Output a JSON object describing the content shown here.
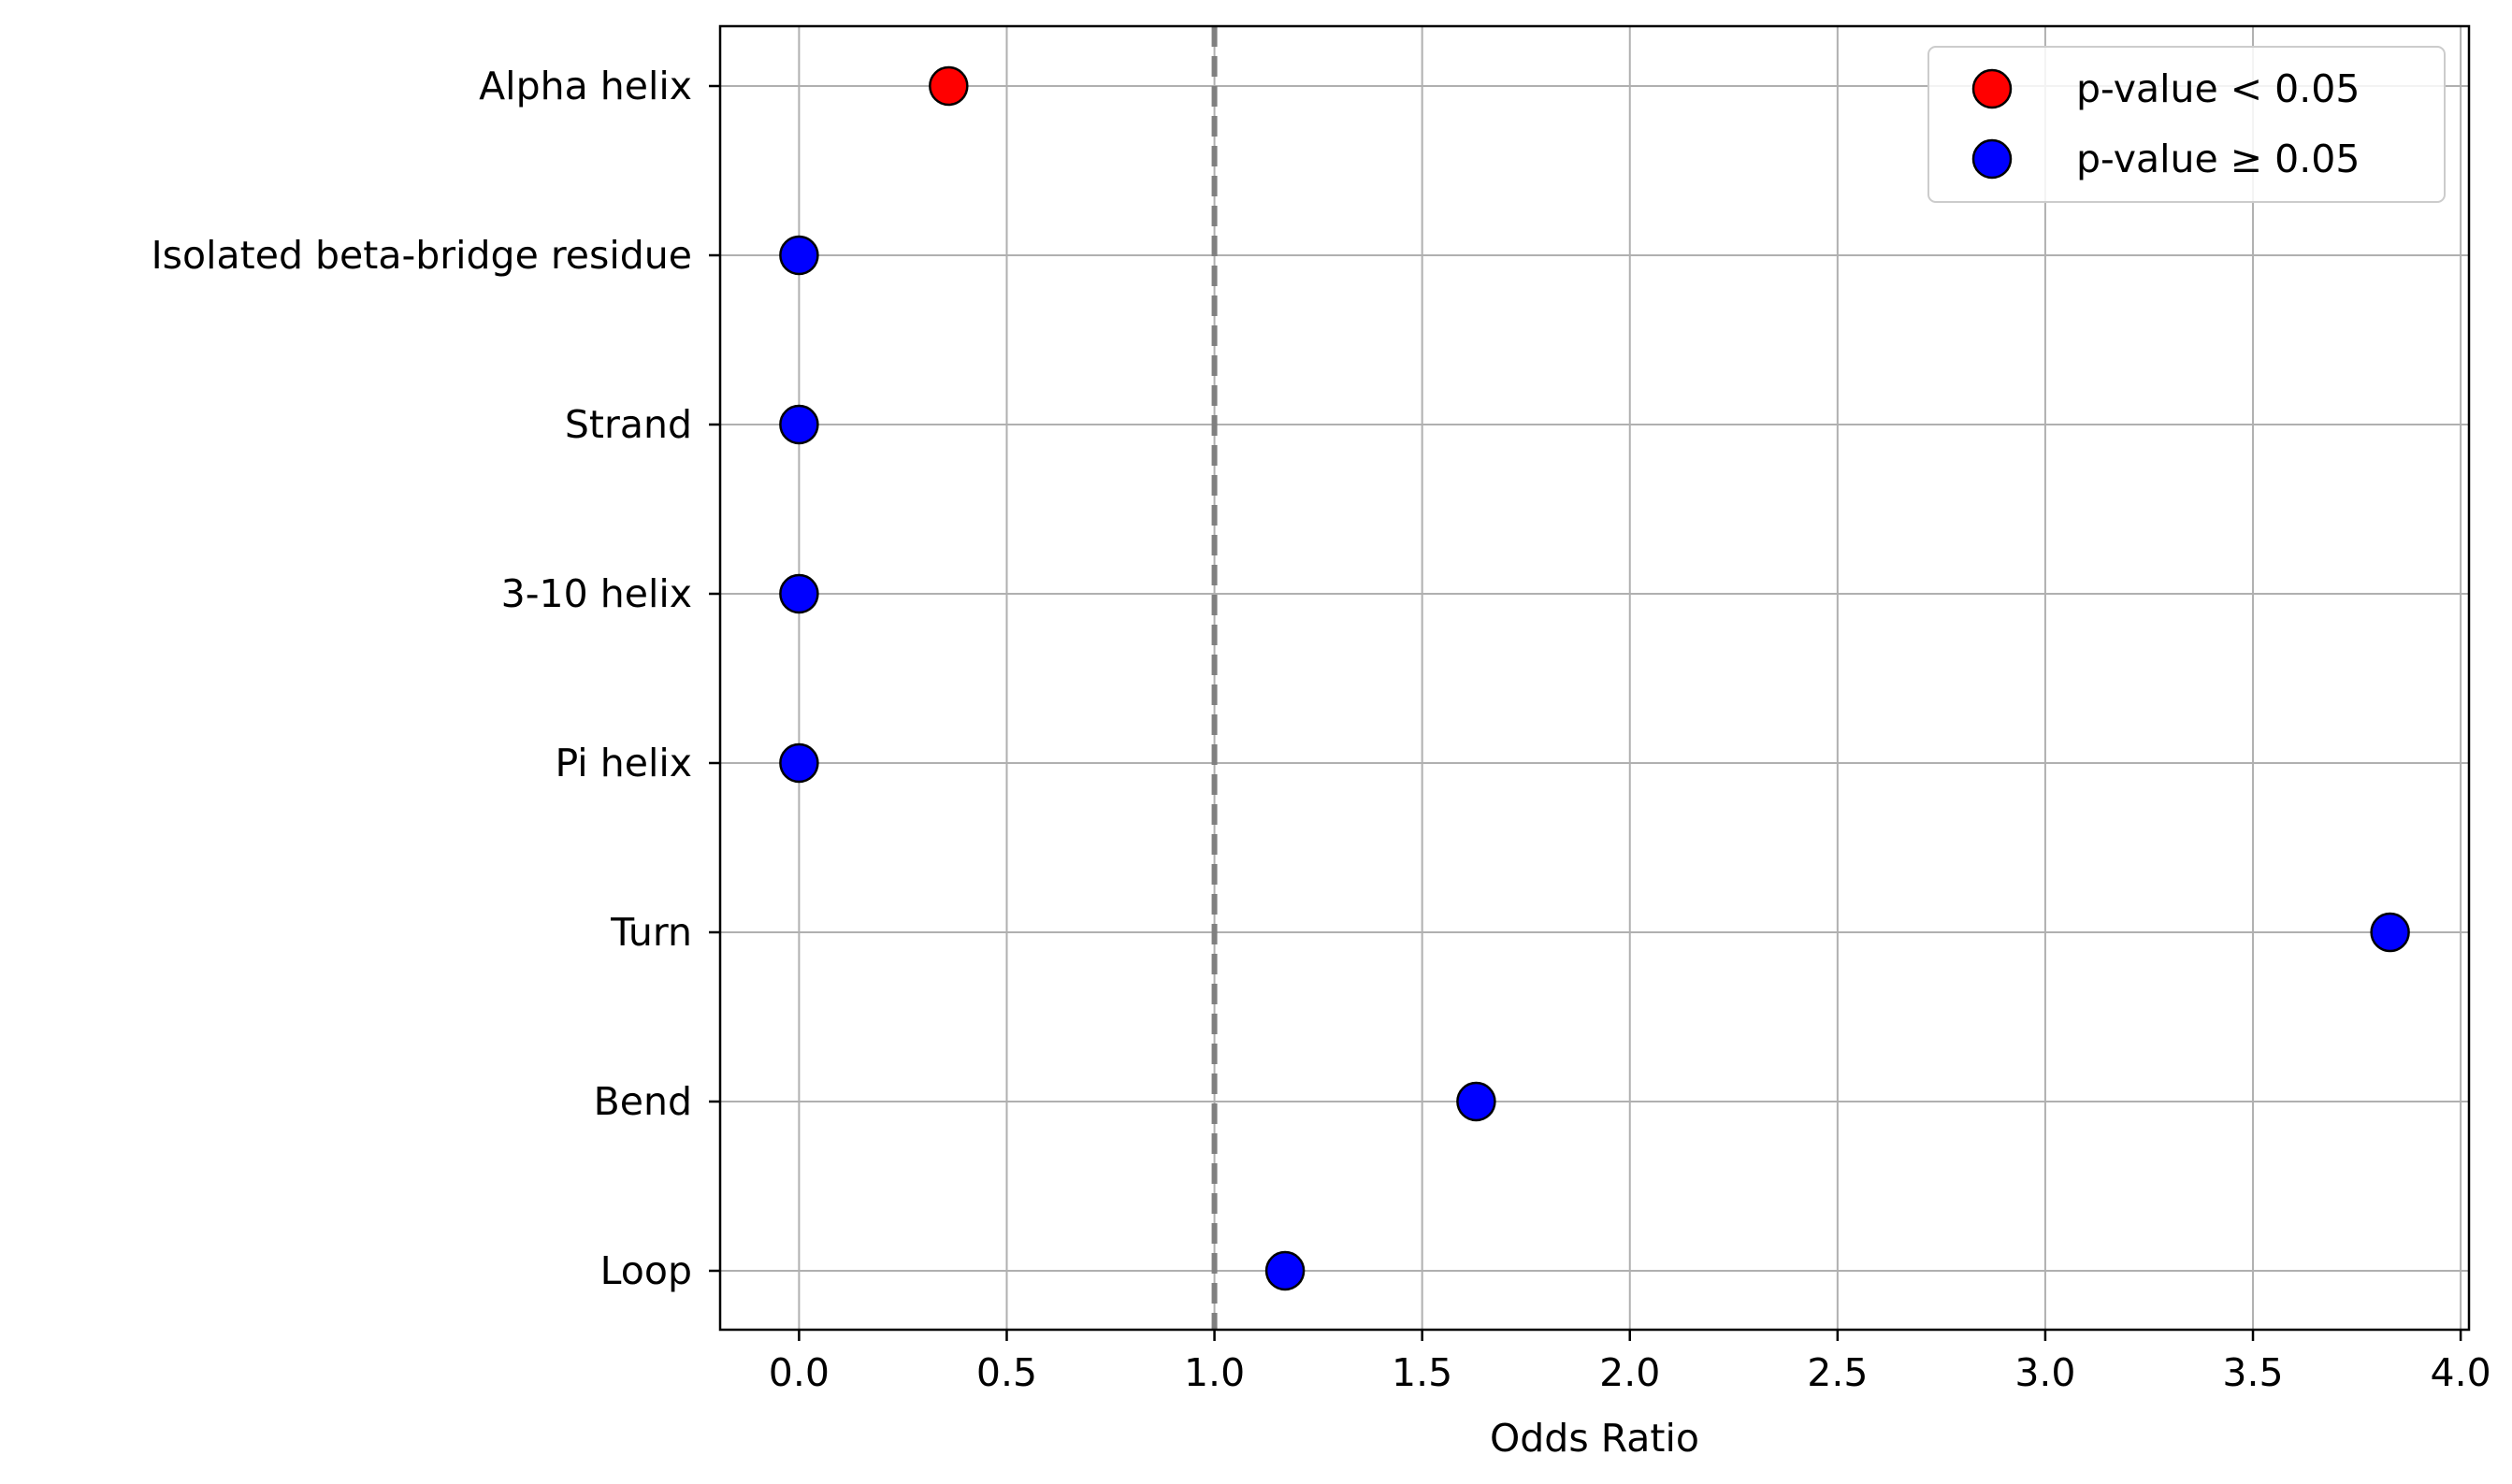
{
  "chart_data": {
    "type": "scatter",
    "title": "",
    "xlabel": "Odds Ratio",
    "ylabel": "",
    "xlim": [
      -0.19,
      4.02
    ],
    "xticks": [
      0.0,
      0.5,
      1.0,
      1.5,
      2.0,
      2.5,
      3.0,
      3.5,
      4.0
    ],
    "xtick_labels": [
      "0.0",
      "0.5",
      "1.0",
      "1.5",
      "2.0",
      "2.5",
      "3.0",
      "3.5",
      "4.0"
    ],
    "categories": [
      "Alpha helix",
      "Isolated beta-bridge residue",
      "Strand",
      "3-10 helix",
      "Pi helix",
      "Turn",
      "Bend",
      "Loop"
    ],
    "values": [
      0.36,
      0.0,
      0.0,
      0.0,
      0.0,
      3.83,
      1.63,
      1.17
    ],
    "significant": [
      true,
      false,
      false,
      false,
      false,
      false,
      false,
      false
    ],
    "reference_line": {
      "x": 1.0,
      "style": "dashed",
      "color": "#808080"
    },
    "grid": true,
    "legend": {
      "placement": "top-right",
      "entries": [
        {
          "label": "p-value < 0.05",
          "color": "#ff0000"
        },
        {
          "label": "p-value ≥ 0.05",
          "color": "#0000ff"
        }
      ]
    },
    "colors": {
      "significant": "#ff0000",
      "not_significant": "#0000ff",
      "grid": "#b0b0b0"
    }
  }
}
